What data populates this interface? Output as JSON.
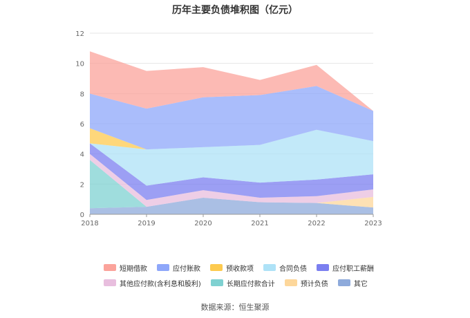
{
  "chart_data": {
    "type": "area",
    "title": "历年主要负债堆积图（亿元）",
    "x": [
      "2018",
      "2019",
      "2020",
      "2021",
      "2022",
      "2023"
    ],
    "ylim": [
      0,
      12
    ],
    "yticks": [
      "0",
      "2",
      "4",
      "6",
      "8",
      "10",
      "12"
    ],
    "stacked": true,
    "grid": true,
    "legend_position": "bottom",
    "series": [
      {
        "name": "其它",
        "color": "#8eaadb",
        "values": [
          0.4,
          0.5,
          1.1,
          0.8,
          0.75,
          0.45
        ]
      },
      {
        "name": "预计负债",
        "color": "#fdd79b",
        "values": [
          0.0,
          0.0,
          0.0,
          0.0,
          0.0,
          0.7
        ]
      },
      {
        "name": "长期应付款合计",
        "color": "#7fd1d1",
        "values": [
          3.2,
          0.0,
          0.0,
          0.0,
          0.0,
          0.0
        ]
      },
      {
        "name": "其他应付款(含利息和股利)",
        "color": "#e8bede",
        "values": [
          0.4,
          0.45,
          0.5,
          0.3,
          0.45,
          0.5
        ]
      },
      {
        "name": "应付职工薪酬",
        "color": "#7b7ff0",
        "values": [
          0.7,
          0.95,
          0.85,
          1.0,
          1.1,
          1.0
        ]
      },
      {
        "name": "合同负债",
        "color": "#aee2f7",
        "values": [
          0.0,
          2.4,
          2.0,
          2.5,
          3.3,
          2.2
        ]
      },
      {
        "name": "预收款项",
        "color": "#fdca4f",
        "values": [
          1.0,
          0.0,
          0.0,
          0.0,
          0.0,
          0.0
        ]
      },
      {
        "name": "应付账款",
        "color": "#8ea7fa",
        "values": [
          2.3,
          2.7,
          3.3,
          3.3,
          2.9,
          2.0
        ]
      },
      {
        "name": "短期借款",
        "color": "#fba39b",
        "values": [
          2.8,
          2.5,
          2.0,
          1.0,
          1.4,
          0.0
        ]
      }
    ]
  },
  "legend": {
    "row1": [
      "短期借款",
      "应付账款",
      "预收款项",
      "合同负债",
      "应付职工薪酬"
    ],
    "row2": [
      "其他应付款(含利息和股利)",
      "长期应付款合计",
      "预计负债",
      "其它"
    ]
  },
  "source": "数据来源：恒生聚源"
}
